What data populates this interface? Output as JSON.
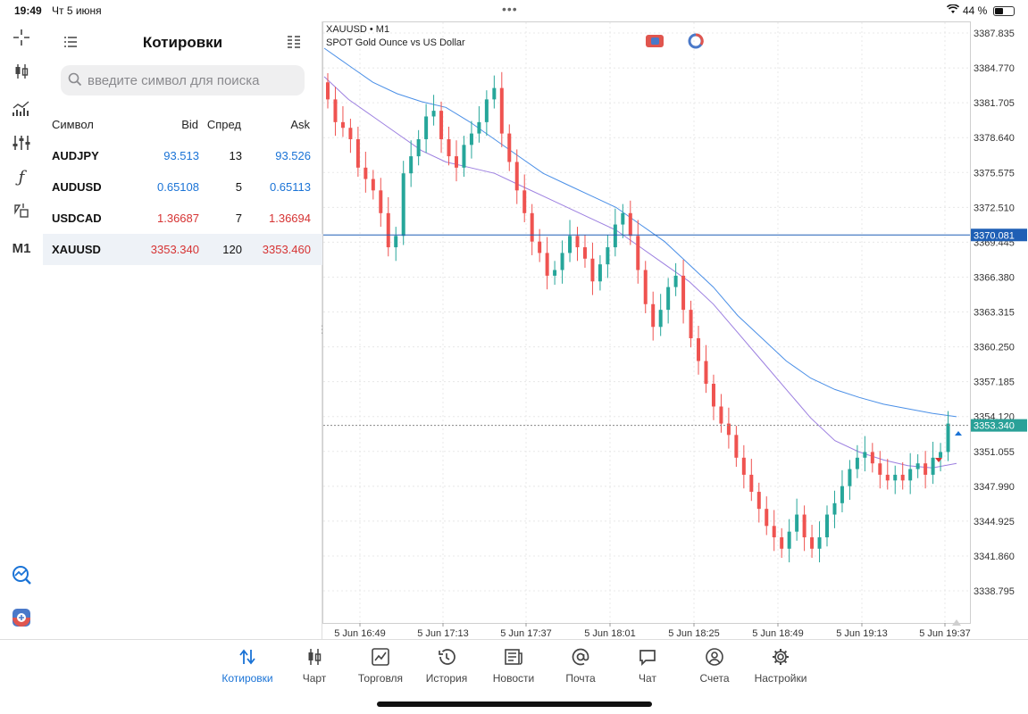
{
  "status": {
    "time": "19:49",
    "date": "Чт 5 июня",
    "battery": "44 %"
  },
  "quotes": {
    "title": "Котировки",
    "search_placeholder": "введите символ для поиска",
    "columns": {
      "symbol": "Символ",
      "bid": "Bid",
      "spread": "Спред",
      "ask": "Ask"
    },
    "rows": [
      {
        "symbol": "AUDJPY",
        "bid": "93.513",
        "spread": "13",
        "ask": "93.526",
        "dir": "up"
      },
      {
        "symbol": "AUDUSD",
        "bid": "0.65108",
        "spread": "5",
        "ask": "0.65113",
        "dir": "up"
      },
      {
        "symbol": "USDCAD",
        "bid": "1.36687",
        "spread": "7",
        "ask": "1.36694",
        "dir": "down"
      },
      {
        "symbol": "XAUUSD",
        "bid": "3353.340",
        "spread": "120",
        "ask": "3353.460",
        "dir": "down"
      }
    ],
    "selected_symbol": "XAUUSD"
  },
  "toolbar": {
    "timeframe": "M1"
  },
  "chart_data": {
    "type": "line",
    "title": "XAUUSD • M1",
    "subtitle": "SPOT Gold Ounce vs US Dollar",
    "y_ticks": [
      "3387.835",
      "3384.770",
      "3381.705",
      "3378.640",
      "3375.575",
      "3372.510",
      "3369.445",
      "3366.380",
      "3363.315",
      "3360.250",
      "3357.185",
      "3354.120",
      "3351.055",
      "3347.990",
      "3344.925",
      "3341.860",
      "3338.795"
    ],
    "x_ticks": [
      "5 Jun 16:49",
      "5 Jun 17:13",
      "5 Jun 17:37",
      "5 Jun 18:01",
      "5 Jun 18:25",
      "5 Jun 18:49",
      "5 Jun 19:13",
      "5 Jun 19:37"
    ],
    "ylim": [
      3336.5,
      3389.0
    ],
    "horizontal_line": {
      "value": 3370.081,
      "label": "3370.081",
      "color": "#1f5fb5"
    },
    "current_price": {
      "value": 3353.34,
      "label": "3353.340",
      "color": "#2aa198"
    },
    "close_series": [
      3382,
      3380,
      3379.5,
      3378.5,
      3376,
      3375,
      3374,
      3372,
      3369,
      3370,
      3375.5,
      3377,
      3378.5,
      3380.5,
      3381,
      3378.5,
      3377,
      3376,
      3378,
      3379,
      3380,
      3382,
      3383,
      3379,
      3376.5,
      3374,
      3372,
      3369.5,
      3368.5,
      3366.5,
      3367,
      3368.5,
      3370,
      3369,
      3368,
      3366,
      3367.5,
      3369,
      3371,
      3372,
      3370,
      3367,
      3364,
      3362,
      3363.5,
      3365.5,
      3366.5,
      3363.5,
      3361,
      3359,
      3357,
      3355,
      3353.5,
      3352.5,
      3350.5,
      3349,
      3347.5,
      3346,
      3344.5,
      3343.5,
      3342.5,
      3344,
      3345.5,
      3343.5,
      3342.5,
      3343.5,
      3345.5,
      3346.5,
      3348,
      3349.5,
      3350.5,
      3351,
      3350,
      3349,
      3348.5,
      3349,
      3348.5,
      3349.5,
      3350,
      3349,
      3350.5,
      3351,
      3353.5
    ],
    "ma_fast_series": [
      3384,
      3382,
      3380.5,
      3379,
      3377.5,
      3376.5,
      3376,
      3375.5,
      3374.5,
      3373.5,
      3372.5,
      3371.5,
      3370.5,
      3369,
      3367.5,
      3366,
      3364,
      3361.5,
      3359,
      3356.5,
      3354,
      3352,
      3351,
      3350.3,
      3349.8,
      3349.6,
      3350
    ],
    "ma_slow_series": [
      3386.5,
      3385,
      3383.5,
      3382.5,
      3381.8,
      3381.3,
      3380,
      3378.5,
      3377,
      3375.5,
      3374.5,
      3373.5,
      3372.5,
      3371,
      3369.5,
      3367.5,
      3365.5,
      3363,
      3361,
      3359,
      3357.5,
      3356.5,
      3355.8,
      3355.2,
      3354.8,
      3354.4,
      3354.1
    ],
    "colors": {
      "bull": "#26a69a",
      "bear": "#ef5350",
      "ma_fast": "#9c7fe0",
      "ma_slow": "#4a8fe7",
      "grid": "#e8e8e8"
    }
  },
  "tabs": [
    {
      "label": "Котировки",
      "icon": "arrows-updown-icon",
      "active": true
    },
    {
      "label": "Чарт",
      "icon": "candles-icon",
      "active": false
    },
    {
      "label": "Торговля",
      "icon": "trade-chart-icon",
      "active": false
    },
    {
      "label": "История",
      "icon": "history-icon",
      "active": false
    },
    {
      "label": "Новости",
      "icon": "news-icon",
      "active": false
    },
    {
      "label": "Почта",
      "icon": "mail-at-icon",
      "active": false
    },
    {
      "label": "Чат",
      "icon": "chat-icon",
      "active": false
    },
    {
      "label": "Счета",
      "icon": "account-icon",
      "active": false
    },
    {
      "label": "Настройки",
      "icon": "settings-gear-icon",
      "active": false
    }
  ]
}
